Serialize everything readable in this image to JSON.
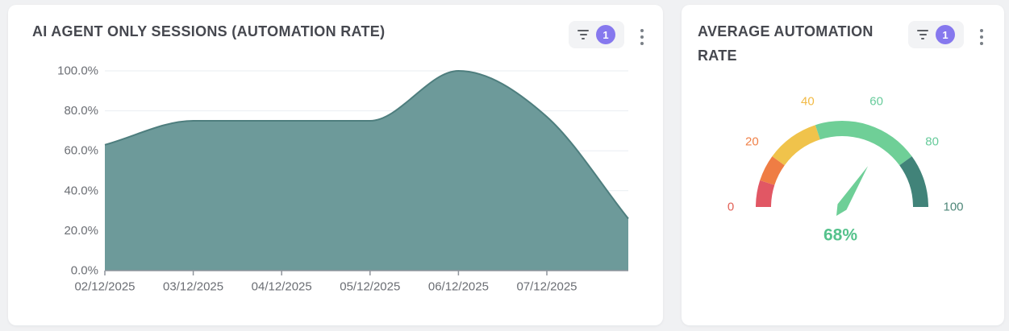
{
  "page": {
    "background_color": "#f0f1f3"
  },
  "cards": {
    "sessions": {
      "filter_badge": "1",
      "filter_icon": "filter-funnel-icon",
      "menu_icon": "kebab-menu-icon"
    },
    "average": {
      "filter_badge": "1",
      "filter_icon": "filter-funnel-icon",
      "menu_icon": "kebab-menu-icon"
    }
  },
  "chart_data": [
    {
      "type": "area",
      "title": "AI AGENT ONLY SESSIONS (AUTOMATION RATE)",
      "x": [
        "02/12/2025",
        "03/12/2025",
        "04/12/2025",
        "05/12/2025",
        "06/12/2025",
        "07/12/2025",
        ""
      ],
      "values": [
        63,
        75,
        75,
        75,
        100,
        77,
        26
      ],
      "ylim": [
        0,
        100
      ],
      "yticks": [
        "0.0%",
        "20.0%",
        "40.0%",
        "60.0%",
        "80.0%",
        "100.0%"
      ],
      "grid": true,
      "smooth": true,
      "legend": "none",
      "area_color": "#6d9a9a",
      "line_color": "#4e7e7e",
      "axis_label_color": "#6b6e74",
      "gridline_color": "#e9edf2",
      "axis_line_color": "#8f949c"
    },
    {
      "type": "gauge",
      "title": "AVERAGE AUTOMATION RATE",
      "value": 68,
      "value_label": "68%",
      "min": 0,
      "max": 100,
      "segments": [
        {
          "from": 0,
          "to": 10,
          "color": "#e15764"
        },
        {
          "from": 10,
          "to": 20,
          "color": "#ef7d44"
        },
        {
          "from": 20,
          "to": 40,
          "color": "#f0c34b"
        },
        {
          "from": 40,
          "to": 80,
          "color": "#6fcf97"
        },
        {
          "from": 80,
          "to": 100,
          "color": "#418379"
        }
      ],
      "tick_labels": [
        {
          "value": 0,
          "label": "0",
          "color": "#e26157"
        },
        {
          "value": 20,
          "label": "20",
          "color": "#f08148"
        },
        {
          "value": 40,
          "label": "40",
          "color": "#f2ba45"
        },
        {
          "value": 60,
          "label": "60",
          "color": "#67cb9b"
        },
        {
          "value": 80,
          "label": "80",
          "color": "#67cb9b"
        },
        {
          "value": 100,
          "label": "100",
          "color": "#4e8779"
        }
      ],
      "needle_color": "#6ecf97",
      "value_color": "#55c28c"
    }
  ]
}
